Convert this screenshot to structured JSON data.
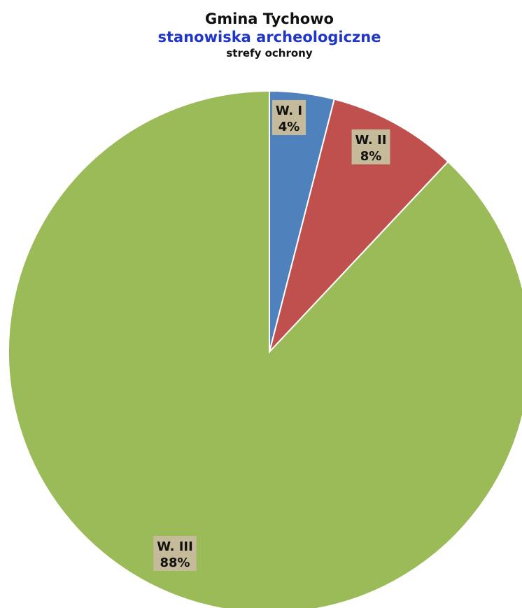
{
  "chart_data": {
    "type": "pie",
    "title": "Gmina Tychowo",
    "subtitle": "stanowiska archeologiczne",
    "caption": "strefy ochrony",
    "categories": [
      "W. I",
      "W. II",
      "W. III"
    ],
    "values": [
      4,
      8,
      88
    ],
    "value_labels": [
      "4%",
      "8%",
      "88%"
    ],
    "colors": [
      "#4f81bd",
      "#c0504d",
      "#9bbb59"
    ],
    "label_box_color": "#c5bb9a",
    "start_angle": "top (12 o'clock)",
    "direction": "clockwise",
    "legend": "none"
  },
  "colors": {
    "subtitle": "#1f36c8",
    "title": "#111111"
  }
}
